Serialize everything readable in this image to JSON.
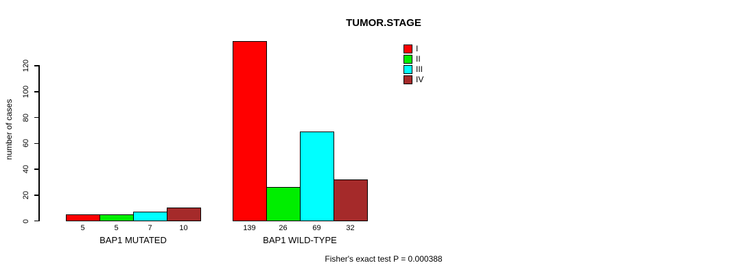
{
  "chart_data": {
    "type": "bar",
    "title": "TUMOR.STAGE",
    "xlabel": "",
    "ylabel": "number of cases",
    "ylim": [
      0,
      120
    ],
    "yticks": [
      0,
      20,
      40,
      60,
      80,
      100,
      120
    ],
    "categories": [
      "I",
      "II",
      "III",
      "IV"
    ],
    "series_colors": [
      "#ff0000",
      "#00ee00",
      "#00ffff",
      "#a52a2a"
    ],
    "groups": [
      {
        "label": "BAP1 MUTATED",
        "values": [
          5,
          5,
          7,
          10
        ]
      },
      {
        "label": "BAP1 WILD-TYPE",
        "values": [
          139,
          26,
          69,
          32
        ]
      }
    ],
    "legend": {
      "position": "top-right",
      "entries": [
        "I",
        "II",
        "III",
        "IV"
      ]
    },
    "grid": false,
    "bar_value_labels_shown": true,
    "footnote": "Fisher's exact test P = 0.000388"
  }
}
